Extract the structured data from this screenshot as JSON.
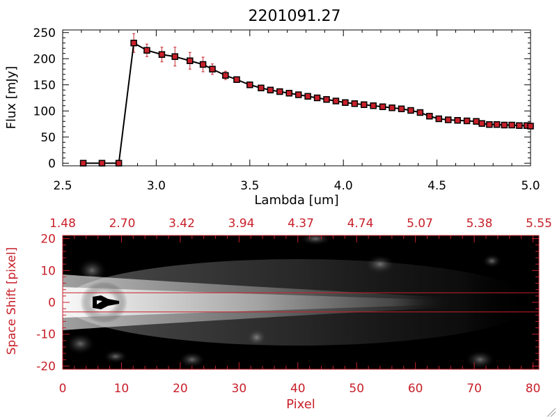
{
  "colors": {
    "accent": "#c8202a",
    "line": "#000000",
    "background": "#ffffff"
  },
  "chart_data": [
    {
      "type": "line",
      "title": "2201091.27",
      "xlabel": "Lambda [um]",
      "ylabel": "Flux [mJy]",
      "xlim": [
        2.5,
        5.0
      ],
      "ylim": [
        -5,
        255
      ],
      "xticks": [
        "2.5",
        "3.0",
        "3.5",
        "4.0",
        "4.5",
        "5.0"
      ],
      "yticks": [
        "0",
        "50",
        "100",
        "150",
        "200",
        "250"
      ],
      "grid": false,
      "series": [
        {
          "x": [
            2.61,
            2.71,
            2.8,
            2.88,
            2.95,
            3.03,
            3.1,
            3.18,
            3.25,
            3.3,
            3.37,
            3.43,
            3.5,
            3.56,
            3.61,
            3.66,
            3.71,
            3.76,
            3.81,
            3.86,
            3.91,
            3.96,
            4.01,
            4.06,
            4.11,
            4.16,
            4.21,
            4.26,
            4.31,
            4.36,
            4.41,
            4.46,
            4.51,
            4.56,
            4.61,
            4.66,
            4.71,
            4.74,
            4.78,
            4.82,
            4.86,
            4.9,
            4.94,
            4.98,
            5.0
          ],
          "y": [
            0,
            0,
            0,
            230,
            216,
            208,
            204,
            196,
            189,
            180,
            168,
            160,
            150,
            144,
            140,
            137,
            134,
            131,
            128,
            125,
            122,
            119,
            116,
            114,
            112,
            110,
            108,
            106,
            104,
            101,
            97,
            90,
            85,
            83,
            82,
            81,
            80,
            76,
            74,
            74,
            73,
            73,
            72,
            72,
            71
          ],
          "yerr": [
            0,
            0,
            0,
            18,
            12,
            14,
            18,
            16,
            14,
            10,
            8,
            5,
            3,
            3,
            3,
            3,
            3,
            3,
            3,
            3,
            3,
            3,
            3,
            3,
            3,
            3,
            3,
            3,
            3,
            3,
            3,
            3,
            3,
            3,
            3,
            3,
            3,
            3,
            3,
            3,
            3,
            3,
            3,
            3,
            3
          ]
        }
      ]
    },
    {
      "type": "heatmap",
      "xlabel": "Pixel",
      "ylabel": "Space Shift [pixel]",
      "xlim": [
        0,
        81
      ],
      "ylim": [
        -21,
        21
      ],
      "xticks": [
        "0",
        "10",
        "20",
        "30",
        "40",
        "50",
        "60",
        "70",
        "80"
      ],
      "yticks": [
        "-20",
        "-10",
        "0",
        "10",
        "20"
      ],
      "top_axis_ticks": [
        "1.48",
        "2.70",
        "3.42",
        "3.94",
        "4.37",
        "4.74",
        "5.07",
        "5.38",
        "5.55"
      ],
      "extraction_window": [
        -3,
        3
      ],
      "trace_center": 0,
      "trace_peak_pixel": 7
    }
  ]
}
